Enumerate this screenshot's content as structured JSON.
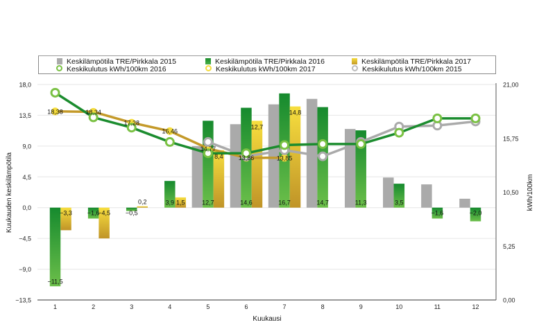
{
  "chart_data": {
    "type": "bar",
    "title": "",
    "xlabel": "Kuukausi",
    "ylabel": "Kuukauden keskilämpötila",
    "y2label": "kWh/100km",
    "categories": [
      "1",
      "2",
      "3",
      "4",
      "5",
      "6",
      "7",
      "8",
      "9",
      "10",
      "11",
      "12"
    ],
    "ylim": [
      -13.5,
      18.0
    ],
    "yticks": [
      "18,0",
      "13,5",
      "9,0",
      "4,5",
      "0,0",
      "−4,5",
      "−9,0",
      "−13,5"
    ],
    "ytick_values": [
      18.0,
      13.5,
      9.0,
      4.5,
      0.0,
      -4.5,
      -9.0,
      -13.5
    ],
    "y2lim": [
      0,
      21
    ],
    "y2ticks": [
      "21,00",
      "15,75",
      "10,50",
      "5,25",
      "0,00"
    ],
    "y2tick_values": [
      21.0,
      15.75,
      10.5,
      5.25,
      0.0
    ],
    "grid": true,
    "legend_position": "top",
    "bar_series": [
      {
        "name": "Keskilämpötila TRE/Pirkkala 2015",
        "color": "#aaaaaa",
        "values": [
          null,
          null,
          null,
          null,
          9.0,
          12.2,
          15.1,
          15.9,
          11.5,
          4.4,
          3.4,
          1.3
        ],
        "labels": [
          "",
          "",
          "",
          "",
          "",
          "",
          "",
          "",
          "",
          "",
          "",
          ""
        ]
      },
      {
        "name": "Keskilämpötila TRE/Pirkkala 2016",
        "color": "#1b8c2e",
        "values": [
          -11.5,
          -1.6,
          -0.5,
          3.9,
          12.7,
          14.6,
          16.7,
          14.7,
          11.3,
          3.5,
          -1.6,
          -2.0
        ],
        "labels": [
          "−11,5",
          "−1,6",
          "−0,5",
          "3,9",
          "12,7",
          "14,6",
          "16,7",
          "14,7",
          "11,3",
          "3,5",
          "−1,6",
          "−2,0"
        ]
      },
      {
        "name": "Keskilämpötila TRE/Pirkkala 2017",
        "color": "#e8c43a",
        "values": [
          -3.3,
          -4.5,
          0.2,
          1.5,
          8.4,
          12.7,
          14.8,
          null,
          null,
          null,
          null,
          null
        ],
        "labels": [
          "−3,3",
          "−4,5",
          "0,2",
          "1,5",
          "8,4",
          "12,7",
          "14,8",
          "",
          "",
          "",
          "",
          ""
        ]
      }
    ],
    "line_series": [
      {
        "name": "Keskikulutus kWh/100km 2016",
        "color": "#1b8c2e",
        "marker_color": "#7ac143",
        "values": [
          20.2,
          17.8,
          16.8,
          15.4,
          14.3,
          14.3,
          15.1,
          15.2,
          15.2,
          16.3,
          17.7,
          17.7
        ],
        "labels": [
          "",
          "",
          "",
          "",
          "",
          "",
          "",
          "",
          "",
          "",
          "",
          ""
        ]
      },
      {
        "name": "Keskikulutus kWh/100km 2017",
        "color": "#c49a2a",
        "marker_color": "#f5dc3c",
        "values": [
          18.38,
          18.34,
          17.28,
          16.46,
          14.77,
          13.86,
          13.85,
          null,
          null,
          null,
          null,
          null
        ],
        "labels": [
          "18,38",
          "18,34",
          "17,28",
          "16,46",
          "14,77",
          "13,86",
          "13,85",
          "",
          "",
          "",
          "",
          ""
        ]
      },
      {
        "name": "Keskikulutus kWh/100km 2015",
        "color": "#aaaaaa",
        "marker_color": "#aaaaaa",
        "values": [
          null,
          null,
          null,
          null,
          15.4,
          14.0,
          14.6,
          14.0,
          15.4,
          16.9,
          17.0,
          17.4
        ],
        "labels": [
          "",
          "",
          "",
          "",
          "",
          "",
          "",
          "",
          "",
          "",
          "",
          ""
        ]
      }
    ]
  },
  "legend": {
    "items": [
      {
        "label": "Keskilämpötila TRE/Pirkkala 2015",
        "kind": "bar",
        "color": "#aaaaaa"
      },
      {
        "label": "Keskilämpötila TRE/Pirkkala 2016",
        "kind": "bar",
        "color": "#1b8c2e"
      },
      {
        "label": "Keskilämpötila TRE/Pirkkala 2017",
        "kind": "bar",
        "color": "#e8c43a"
      },
      {
        "label": "Keskikulutus kWh/100km 2016",
        "kind": "line",
        "color": "#7ac143"
      },
      {
        "label": "Keskikulutus kWh/100km 2017",
        "kind": "line",
        "color": "#f5dc3c"
      },
      {
        "label": "Keskikulutus kWh/100km 2015",
        "kind": "line",
        "color": "#aaaaaa"
      }
    ]
  }
}
